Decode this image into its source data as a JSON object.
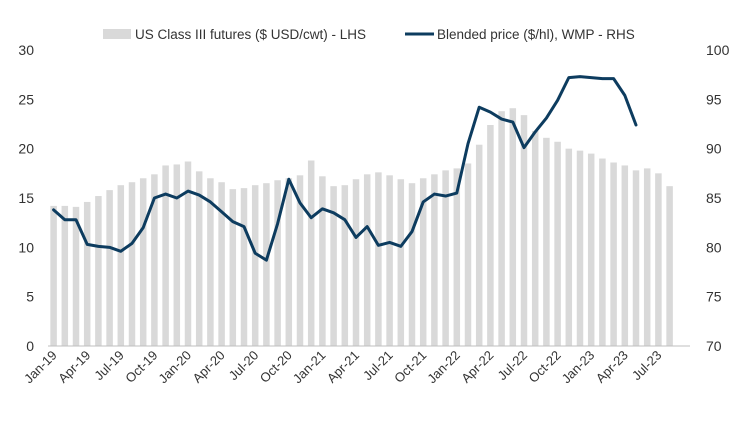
{
  "chart_data": {
    "type": "bar+line",
    "title": "",
    "legend_position": "top",
    "grid": false,
    "x_tick_labels": [
      "Jan-19",
      "Apr-19",
      "Jul-19",
      "Oct-19",
      "Jan-20",
      "Apr-20",
      "Jul-20",
      "Oct-20",
      "Jan-21",
      "Apr-21",
      "Jul-21",
      "Oct-21",
      "Jan-22",
      "Apr-22",
      "Jul-22",
      "Oct-22",
      "Jan-23",
      "Apr-23",
      "Jul-23"
    ],
    "left_axis": {
      "ylim": [
        0,
        30
      ],
      "ticks": [
        "0",
        "5",
        "10",
        "15",
        "20",
        "25",
        "30"
      ]
    },
    "right_axis": {
      "ylim": [
        70,
        100
      ],
      "ticks": [
        "70",
        "75",
        "80",
        "85",
        "90",
        "95",
        "100"
      ]
    },
    "bar_series": {
      "name": "US Class III futures ($ USD/cwt) - LHS",
      "color": "#d9d9d9",
      "values": [
        14.2,
        14.2,
        14.1,
        14.6,
        15.2,
        15.8,
        16.3,
        16.6,
        17.0,
        17.4,
        18.3,
        18.4,
        18.7,
        17.7,
        17.0,
        16.6,
        15.9,
        16.0,
        16.3,
        16.5,
        16.8,
        17.0,
        17.3,
        18.8,
        17.2,
        16.2,
        16.3,
        16.9,
        17.4,
        17.6,
        17.3,
        16.9,
        16.5,
        17.0,
        17.4,
        17.8,
        18.0,
        18.5,
        20.4,
        22.4,
        23.8,
        24.1,
        23.4,
        21.8,
        21.1,
        20.7,
        20.0,
        19.8,
        19.5,
        19.0,
        18.6,
        18.3,
        17.8,
        18.0,
        17.5,
        16.2
      ]
    },
    "line_series": {
      "name": "Blended price ($/hl), WMP - RHS",
      "color": "#0d3c5f",
      "values": [
        83.8,
        82.8,
        82.8,
        80.3,
        80.1,
        80.0,
        79.6,
        80.4,
        82.0,
        85.0,
        85.4,
        85.0,
        85.7,
        85.3,
        84.6,
        83.6,
        82.6,
        82.1,
        79.4,
        78.7,
        82.4,
        86.9,
        84.5,
        83.0,
        83.9,
        83.5,
        82.8,
        81.0,
        82.1,
        80.2,
        80.5,
        80.1,
        81.6,
        84.6,
        85.4,
        85.2,
        85.5,
        90.5,
        94.2,
        93.7,
        93.0,
        92.7,
        90.1,
        91.7,
        93.1,
        94.9,
        97.2,
        97.3,
        97.2,
        97.1,
        97.1,
        95.4,
        92.4
      ]
    }
  }
}
